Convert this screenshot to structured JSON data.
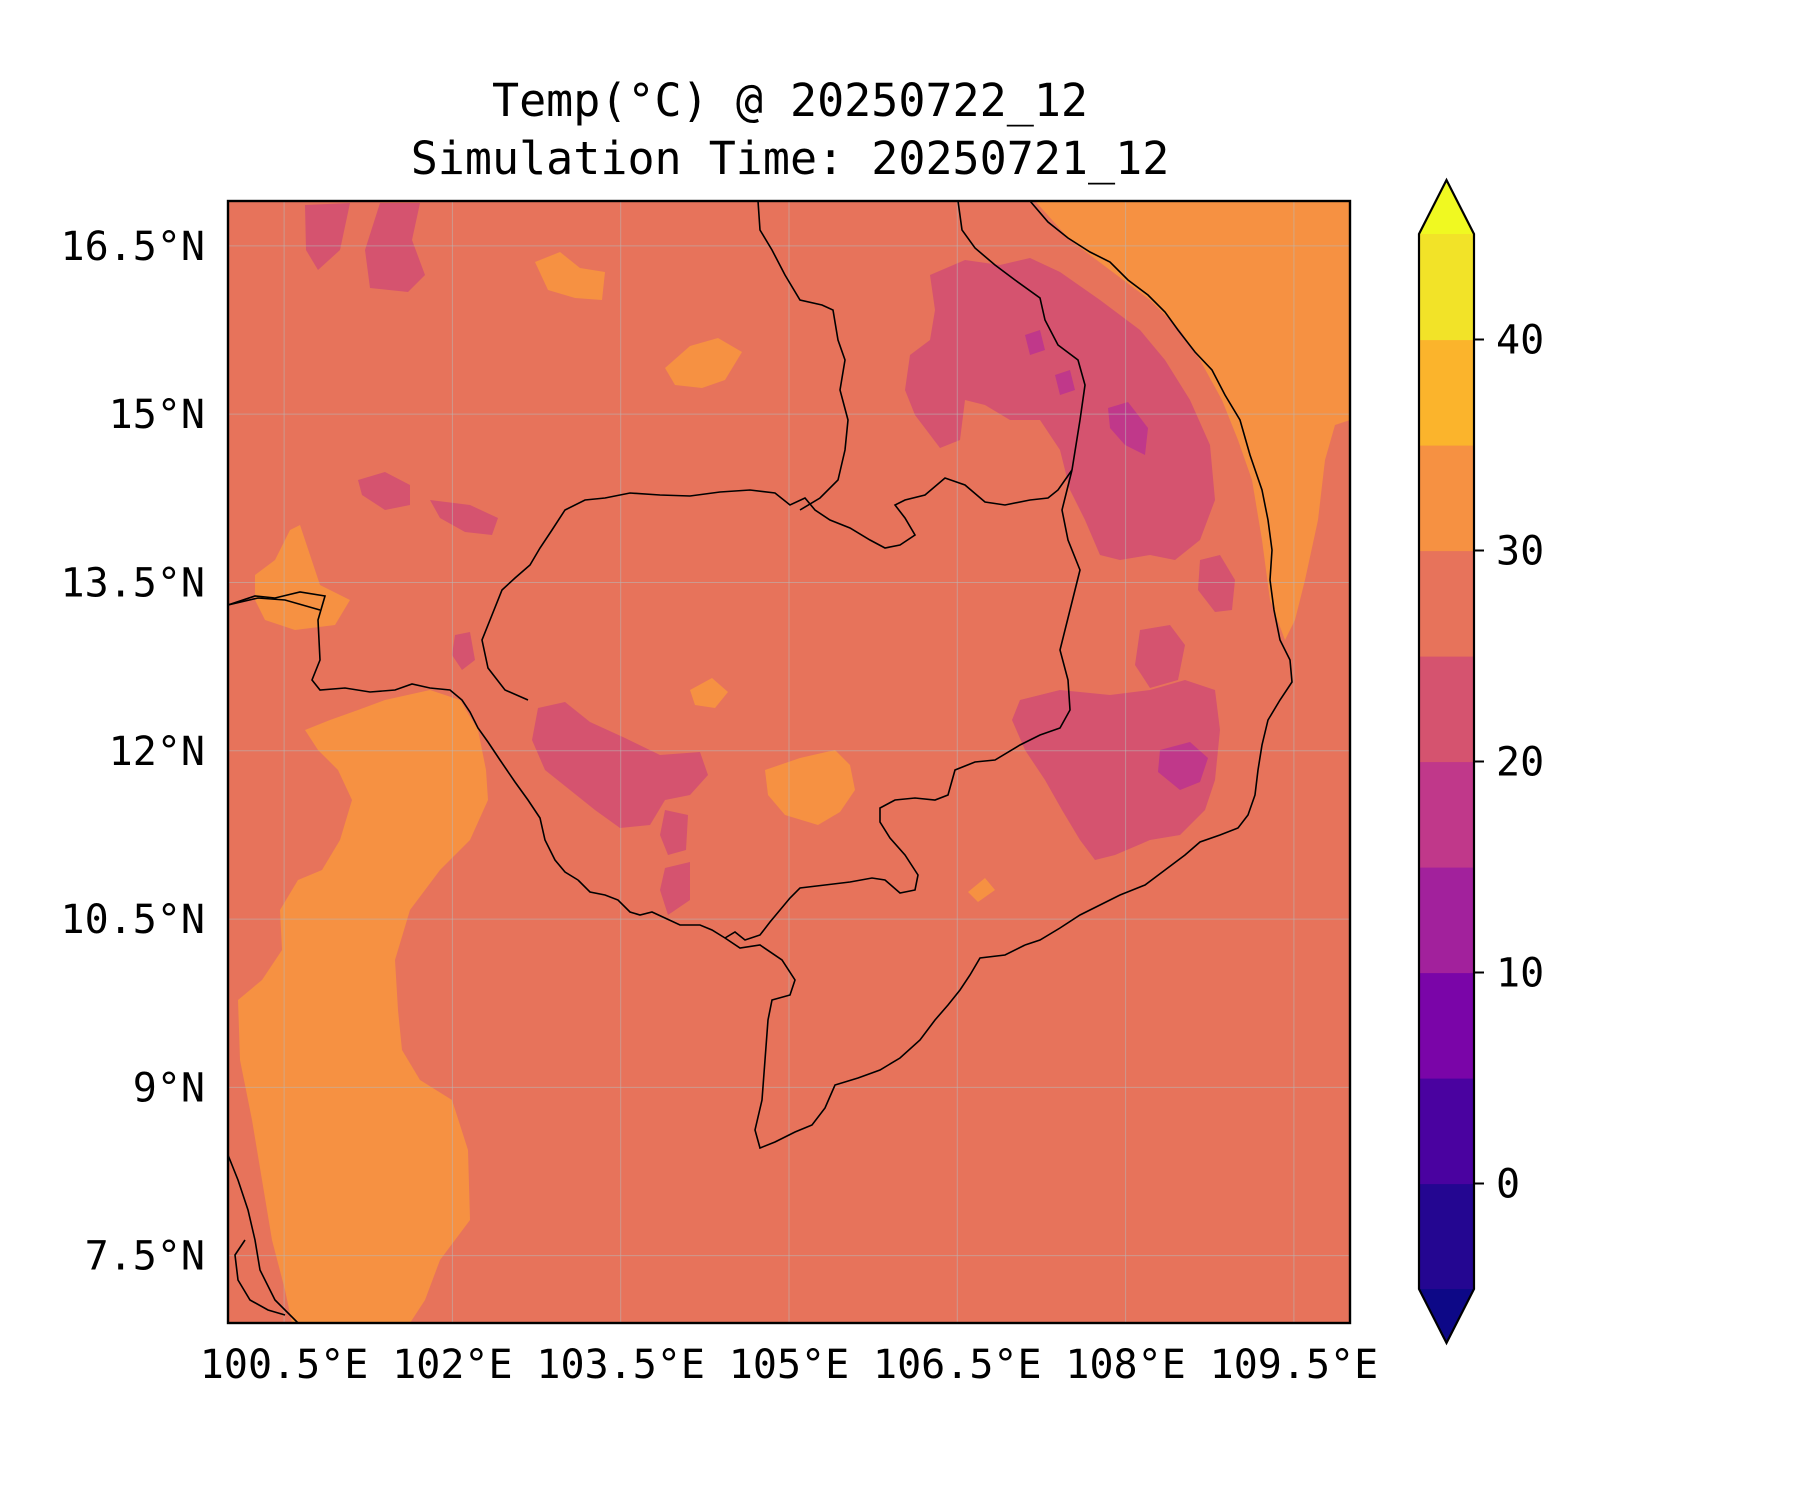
{
  "title": {
    "line1": "Temp(°C) @ 20250722_12",
    "line2": "Simulation Time: 20250721_12"
  },
  "map": {
    "variable": "Temperature",
    "units": "°C",
    "valid_time": "20250722_12",
    "simulation_time": "20250721_12",
    "lon_range": [
      100.0,
      110.0
    ],
    "lat_range": [
      6.9,
      16.9
    ],
    "x_ticks": [
      {
        "value": 100.5,
        "label": "100.5°E"
      },
      {
        "value": 102.0,
        "label": "102°E"
      },
      {
        "value": 103.5,
        "label": "103.5°E"
      },
      {
        "value": 105.0,
        "label": "105°E"
      },
      {
        "value": 106.5,
        "label": "106.5°E"
      },
      {
        "value": 108.0,
        "label": "108°E"
      },
      {
        "value": 109.5,
        "label": "109.5°E"
      }
    ],
    "y_ticks": [
      {
        "value": 16.5,
        "label": "16.5°N"
      },
      {
        "value": 15.0,
        "label": "15°N"
      },
      {
        "value": 13.5,
        "label": "13.5°N"
      },
      {
        "value": 12.0,
        "label": "12°N"
      },
      {
        "value": 10.5,
        "label": "10.5°N"
      },
      {
        "value": 9.0,
        "label": "9°N"
      },
      {
        "value": 7.5,
        "label": "7.5°N"
      }
    ],
    "grid": true,
    "dominant_range_c": [
      25,
      30
    ]
  },
  "colorbar": {
    "min": -5,
    "max": 45,
    "extend": "both",
    "levels": [
      -5,
      0,
      5,
      10,
      15,
      20,
      25,
      30,
      35,
      40,
      45
    ],
    "colors": [
      "#240691",
      "#4a02a0",
      "#7a05a8",
      "#a2219c",
      "#c0388a",
      "#d5536f",
      "#e7735b",
      "#f69142",
      "#fbb42c",
      "#f2e328"
    ],
    "under_color": "#0d0887",
    "over_color": "#f0f921",
    "ticks": [
      {
        "value": 0,
        "label": "0"
      },
      {
        "value": 10,
        "label": "10"
      },
      {
        "value": 20,
        "label": "20"
      },
      {
        "value": 30,
        "label": "30"
      },
      {
        "value": 40,
        "label": "40"
      }
    ]
  }
}
